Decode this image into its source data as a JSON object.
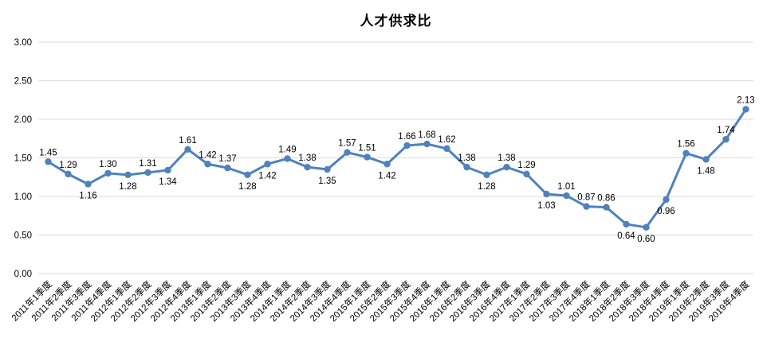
{
  "chart_data": {
    "type": "line",
    "title": "人才供求比",
    "xlabel": "",
    "ylabel": "",
    "legend_position": "none",
    "grid": "horizontal",
    "ylim": [
      0,
      3
    ],
    "ytick_labels": [
      "0.00",
      "0.50",
      "1.00",
      "1.50",
      "2.00",
      "2.50",
      "3.00"
    ],
    "ytick_values": [
      0,
      0.5,
      1,
      1.5,
      2,
      2.5,
      3
    ],
    "categories": [
      "2011年1季度",
      "2011年2季度",
      "2011年3季度",
      "2011年4季度",
      "2012年1季度",
      "2012年2季度",
      "2012年3季度",
      "2012年4季度",
      "2013年1季度",
      "2013年2季度",
      "2013年3季度",
      "2013年4季度",
      "2014年1季度",
      "2014年2季度",
      "2014年3季度",
      "2014年4季度",
      "2015年1季度",
      "2015年2季度",
      "2015年3季度",
      "2015年4季度",
      "2016年1季度",
      "2016年2季度",
      "2016年3季度",
      "2016年4季度",
      "2017年1季度",
      "2017年2季度",
      "2017年3季度",
      "2017年4季度",
      "2018年1季度",
      "2018年2季度",
      "2018年3季度",
      "2018年4季度",
      "2019年1季度",
      "2019年2季度",
      "2019年3季度",
      "2019年4季度"
    ],
    "values": [
      1.45,
      1.29,
      1.16,
      1.3,
      1.28,
      1.31,
      1.34,
      1.61,
      1.42,
      1.37,
      1.28,
      1.42,
      1.49,
      1.38,
      1.35,
      1.57,
      1.51,
      1.42,
      1.66,
      1.68,
      1.62,
      1.38,
      1.28,
      1.38,
      1.29,
      1.03,
      1.01,
      0.87,
      0.86,
      0.64,
      0.6,
      0.96,
      1.56,
      1.48,
      1.74,
      2.13
    ],
    "data_label_decimals": 2,
    "data_label_positions": [
      "above",
      "above",
      "below",
      "above",
      "below",
      "above",
      "below",
      "above",
      "above",
      "above",
      "below",
      "below",
      "above",
      "above",
      "below",
      "above",
      "above",
      "below",
      "above",
      "above",
      "above",
      "above",
      "below",
      "above",
      "above",
      "below",
      "above",
      "above",
      "above",
      "below",
      "below",
      "below",
      "above",
      "below",
      "above",
      "above"
    ],
    "colors": {
      "series": "#4F81BD",
      "gridline": "#D9D9D9",
      "axis_text": "#000000",
      "data_label_text": "#000000",
      "background": "#FFFFFF"
    }
  }
}
